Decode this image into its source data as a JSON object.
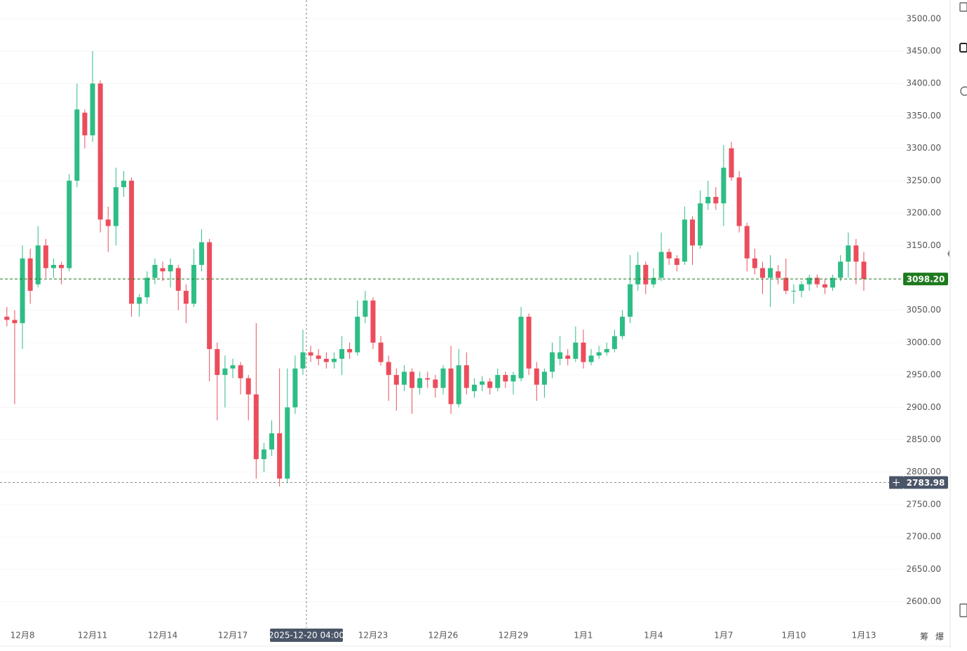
{
  "chart_data": {
    "type": "candlestick",
    "categories": [
      null,
      null,
      "12月8",
      null,
      null,
      null,
      null,
      null,
      null,
      null,
      null,
      "12月11",
      null,
      null,
      null,
      null,
      null,
      null,
      null,
      null,
      "12月14",
      null,
      null,
      null,
      null,
      null,
      null,
      null,
      null,
      "12月17",
      null,
      null,
      null,
      null,
      null,
      null,
      null,
      null,
      null,
      null,
      null,
      null,
      null,
      null,
      null,
      null,
      null,
      "12月23",
      null,
      null,
      null,
      null,
      null,
      null,
      null,
      null,
      "12月26",
      null,
      null,
      null,
      null,
      null,
      null,
      null,
      null,
      "12月29",
      null,
      null,
      null,
      null,
      null,
      null,
      null,
      null,
      "1月1",
      null,
      null,
      null,
      null,
      null,
      null,
      null,
      null,
      "1月4",
      null,
      null,
      null,
      null,
      null,
      null,
      null,
      null,
      "1月7",
      null,
      null,
      null,
      null,
      null,
      null,
      null,
      null,
      "1月10",
      null,
      null,
      null,
      null,
      null,
      null,
      null,
      null,
      "1月13"
    ],
    "open": [
      3040,
      3035,
      3030,
      3130,
      3090,
      3150,
      3115,
      3120,
      3115,
      3250,
      3355,
      3320,
      3400,
      3190,
      3180,
      3240,
      3250,
      3060,
      3070,
      3100,
      3115,
      3110,
      3115,
      3080,
      3060,
      3120,
      3155,
      2990,
      2950,
      2960,
      2965,
      2945,
      2920,
      2820,
      2835,
      2860,
      2790,
      2900,
      2960,
      2985,
      2980,
      2975,
      2970,
      2975,
      2990,
      2985,
      3040,
      3065,
      3000,
      2970,
      2950,
      2935,
      2955,
      2930,
      2945,
      2943,
      2930,
      2960,
      2905,
      2965,
      2925,
      2935,
      2940,
      2930,
      2950,
      2940,
      2945,
      3040,
      2960,
      2935,
      2955,
      2975,
      2980,
      2975,
      3000,
      2970,
      2980,
      2985,
      2990,
      3010,
      3040,
      3090,
      3120,
      3090,
      3100,
      3140,
      3130,
      3125,
      3190,
      3150,
      3215,
      3225,
      3215,
      3300,
      3255,
      3180,
      3130,
      3115,
      3100,
      3110,
      3100,
      3080,
      3080,
      3090,
      3100,
      3090,
      3085,
      3100,
      3125,
      3150,
      3125
    ],
    "high": [
      3055,
      3050,
      3150,
      3145,
      3180,
      3160,
      3130,
      3125,
      3260,
      3400,
      3360,
      3450,
      3405,
      3210,
      3270,
      3265,
      3255,
      3075,
      3110,
      3130,
      3125,
      3130,
      3120,
      3090,
      3145,
      3175,
      3160,
      3000,
      2980,
      2975,
      2970,
      2950,
      3030,
      2845,
      2880,
      2960,
      2960,
      2980,
      3020,
      2995,
      2990,
      2985,
      2985,
      3010,
      3000,
      3065,
      3080,
      3070,
      3010,
      2980,
      2960,
      2965,
      2960,
      2955,
      2955,
      2950,
      2965,
      2995,
      2990,
      2985,
      2945,
      2948,
      2945,
      2960,
      2955,
      2955,
      3055,
      3045,
      2970,
      2960,
      3000,
      3010,
      2990,
      3025,
      3020,
      2990,
      2995,
      3000,
      3020,
      3050,
      3135,
      3140,
      3125,
      3115,
      3170,
      3145,
      3135,
      3210,
      3195,
      3235,
      3250,
      3240,
      3305,
      3310,
      3265,
      3185,
      3145,
      3125,
      3135,
      3120,
      3130,
      3090,
      3095,
      3105,
      3105,
      3098,
      3105,
      3135,
      3170,
      3160,
      3140
    ],
    "low": [
      3025,
      2905,
      2990,
      3060,
      3085,
      3100,
      3100,
      3090,
      3110,
      3240,
      3300,
      3310,
      3170,
      3140,
      3150,
      3225,
      3040,
      3040,
      3060,
      3090,
      3095,
      3085,
      3050,
      3030,
      3055,
      3110,
      2940,
      2880,
      2900,
      2945,
      2920,
      2880,
      2790,
      2800,
      2825,
      2778,
      2783,
      2890,
      2950,
      2970,
      2965,
      2960,
      2960,
      2950,
      2975,
      2980,
      3030,
      2990,
      2965,
      2910,
      2895,
      2925,
      2890,
      2920,
      2930,
      2915,
      2920,
      2890,
      2900,
      2920,
      2915,
      2925,
      2920,
      2925,
      2930,
      2920,
      2940,
      2950,
      2910,
      2915,
      2945,
      2965,
      2965,
      2970,
      2960,
      2965,
      2975,
      2980,
      2985,
      3005,
      3030,
      3080,
      3075,
      3085,
      3095,
      3120,
      3110,
      3120,
      3120,
      3145,
      3205,
      3205,
      3180,
      3250,
      3170,
      3110,
      3105,
      3075,
      3055,
      3090,
      3075,
      3060,
      3070,
      3080,
      3085,
      3075,
      3080,
      3095,
      3100,
      3090,
      3080
    ],
    "close": [
      3035,
      3030,
      3130,
      3080,
      3150,
      3115,
      3120,
      3115,
      3250,
      3360,
      3320,
      3400,
      3190,
      3180,
      3240,
      3250,
      3060,
      3070,
      3100,
      3120,
      3110,
      3120,
      3080,
      3060,
      3120,
      3155,
      2990,
      2950,
      2960,
      2965,
      2945,
      2920,
      2820,
      2835,
      2860,
      2790,
      2900,
      2960,
      2985,
      2980,
      2975,
      2970,
      2975,
      2990,
      2985,
      3040,
      3065,
      3000,
      2970,
      2950,
      2935,
      2955,
      2930,
      2945,
      2943,
      2930,
      2960,
      2905,
      2965,
      2930,
      2935,
      2940,
      2930,
      2950,
      2940,
      2950,
      3040,
      2960,
      2935,
      2955,
      2985,
      2985,
      2975,
      3000,
      2970,
      2980,
      2985,
      2990,
      3010,
      3040,
      3090,
      3120,
      3090,
      3100,
      3140,
      3130,
      3120,
      3190,
      3150,
      3215,
      3225,
      3215,
      3270,
      3255,
      3180,
      3130,
      3115,
      3100,
      3115,
      3100,
      3080,
      3080,
      3090,
      3100,
      3090,
      3085,
      3100,
      3125,
      3150,
      3125,
      3098.2
    ],
    "up_color": "#2ebd85",
    "down_color": "#eb4d5c",
    "ylim": [
      2566,
      3529
    ],
    "yticks": [
      {
        "value": 2600,
        "label": "2600.00"
      },
      {
        "value": 2650,
        "label": "2650.00"
      },
      {
        "value": 2700,
        "label": "2700.00"
      },
      {
        "value": 2750,
        "label": "2750.00"
      },
      {
        "value": 2800,
        "label": "2800.00"
      },
      {
        "value": 2850,
        "label": "2850.00"
      },
      {
        "value": 2900,
        "label": "2900.00"
      },
      {
        "value": 2950,
        "label": "2950.00"
      },
      {
        "value": 3000,
        "label": "3000.00"
      },
      {
        "value": 3050,
        "label": "3050.00"
      },
      {
        "value": 3100,
        "label": "3100.00"
      },
      {
        "value": 3150,
        "label": "3150.00"
      },
      {
        "value": 3200,
        "label": "3200.00"
      },
      {
        "value": 3250,
        "label": "3250.00"
      },
      {
        "value": 3300,
        "label": "3300.00"
      },
      {
        "value": 3350,
        "label": "3350.00"
      },
      {
        "value": 3400,
        "label": "3400.00"
      },
      {
        "value": 3450,
        "label": "3450.00"
      },
      {
        "value": 3500,
        "label": "3500.00"
      }
    ],
    "grid": true,
    "last_price": {
      "value": 3098.2,
      "label": "3098.20",
      "color": "#1f7a1f"
    },
    "crosshair": {
      "time": "2025-12-20 04:00",
      "price": 2783.98,
      "color": "#4a5568"
    }
  },
  "ui": {
    "bottom_buttons": [
      "筹",
      "爆"
    ]
  }
}
